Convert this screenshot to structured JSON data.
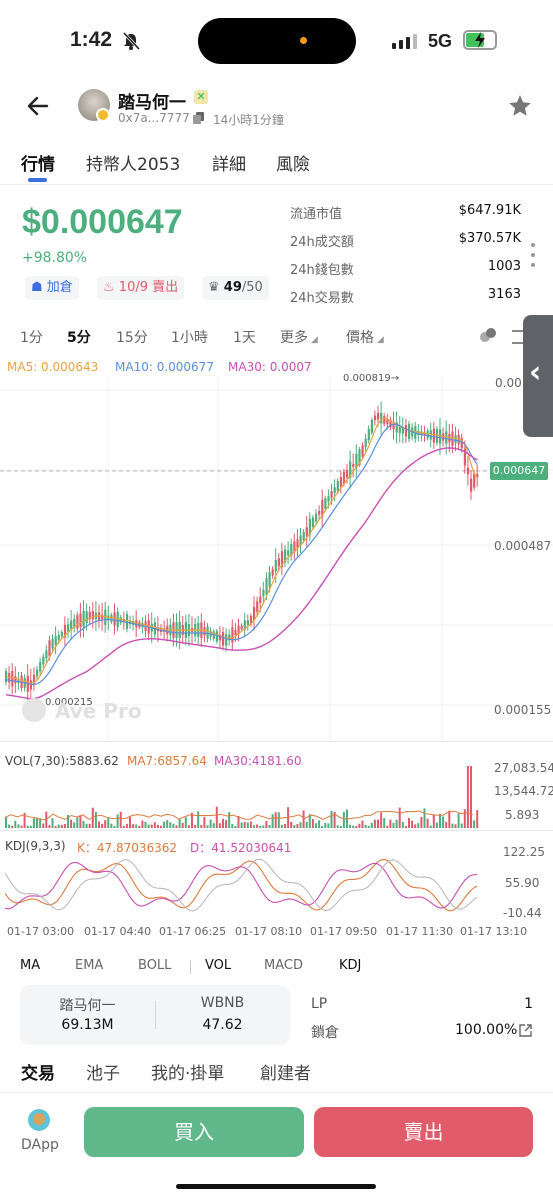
{
  "status": {
    "time": "1:42",
    "network": "5G"
  },
  "header": {
    "token_name": "踏马何一",
    "address": "0x7a...7777",
    "age": "14小時1分鐘"
  },
  "tabs": [
    "行情",
    "持幣人2053",
    "詳細",
    "風險"
  ],
  "price": {
    "value": "$0.000647",
    "change": "+98.80%"
  },
  "pills": {
    "add": "加倉",
    "buysell": "10/9 賣出",
    "holders": "49",
    "holders_total": "/50"
  },
  "stats": [
    {
      "label": "流通市值",
      "value": "$647.91K"
    },
    {
      "label": "24h成交額",
      "value": "$370.57K"
    },
    {
      "label": "24h錢包數",
      "value": "1003"
    },
    {
      "label": "24h交易數",
      "value": "3163"
    }
  ],
  "timeframes": [
    "1分",
    "5分",
    "15分",
    "1小時",
    "1天",
    "更多",
    "價格"
  ],
  "ma": {
    "ma5": "MA5: 0.000643",
    "ma10": "MA10: 0.000677",
    "ma30": "MA30: 0.0007"
  },
  "chart_data": {
    "type": "candlestick",
    "price_axis": [
      "0.00",
      "0.000487",
      "0.000155"
    ],
    "current_price_tag": "0.000647",
    "high_label": "0.000819→",
    "low_label": "0.000215",
    "watermark": "Ave Pro",
    "x_labels": [
      "01-17 03:00",
      "01-17 04:40",
      "01-17 06:25",
      "01-17 08:10",
      "01-17 09:50",
      "01-17 11:30",
      "01-17 13:10"
    ],
    "volume": {
      "title": "VOL(7,30):5883.62",
      "ma7": "MA7:6857.64",
      "ma30": "MA30:4181.60",
      "axis": [
        "27,083.54",
        "13,544.72",
        "5.893"
      ]
    },
    "kdj": {
      "title": "KDJ(9,3,3)",
      "k": "K：47.87036362",
      "d": "D：41.52030641",
      "axis": [
        "122.25",
        "55.90",
        "-10.44"
      ]
    }
  },
  "indicator_tabs": [
    "MA",
    "EMA",
    "BOLL",
    "VOL",
    "MACD",
    "KDJ"
  ],
  "pool": {
    "token_a": "踏马何一",
    "amount_a": "69.13M",
    "token_b": "WBNB",
    "amount_b": "47.62",
    "lp_label": "LP",
    "lp_value": "1",
    "lock_label": "鎖倉",
    "lock_value": "100.00%"
  },
  "bottom_tabs": [
    "交易",
    "池子",
    "我的·掛單",
    "創建者"
  ],
  "actions": {
    "dapp": "DApp",
    "buy": "買入",
    "sell": "賣出"
  },
  "colors": {
    "up": "#4caf7d",
    "down": "#e05a6a",
    "ma5": "#e8a33d",
    "ma10": "#5b8fd9",
    "ma30": "#c94fb4"
  }
}
